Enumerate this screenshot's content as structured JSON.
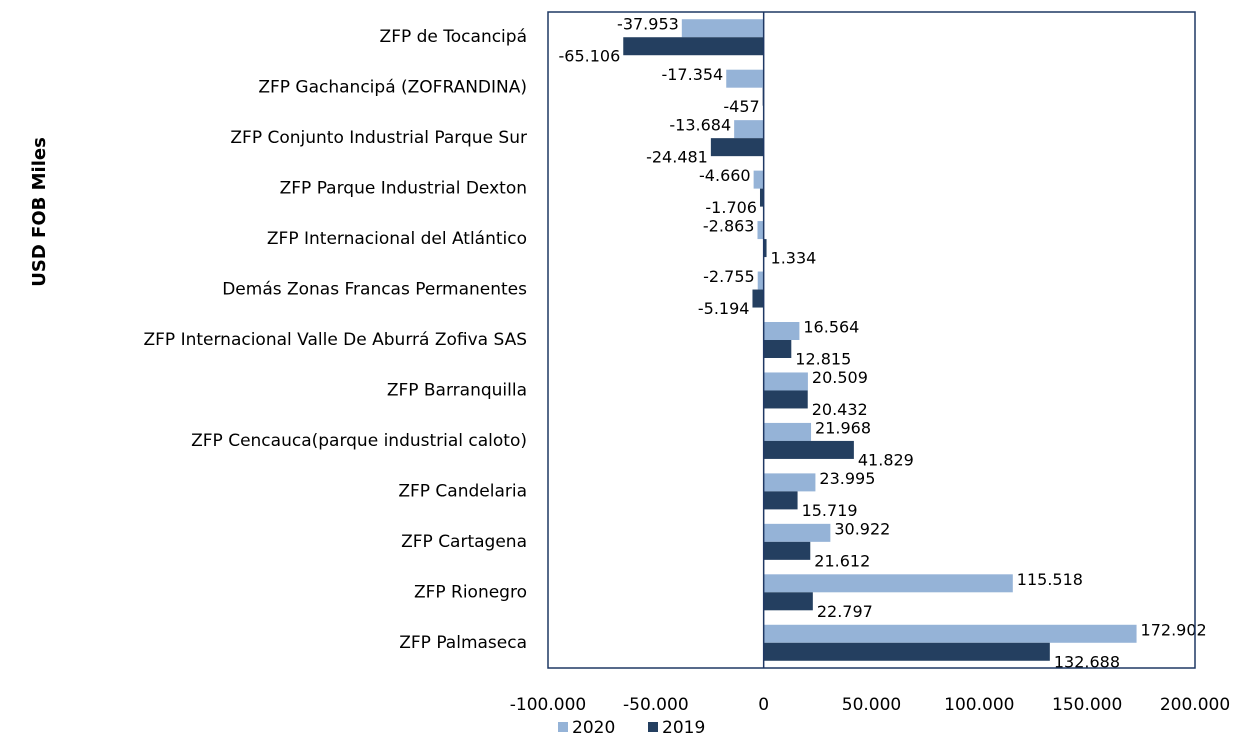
{
  "chart_data": {
    "type": "barh",
    "ylabel": "USD FOB Miles",
    "categories": [
      "ZFP de Tocancipá",
      "ZFP Gachancipá (ZOFRANDINA)",
      "ZFP Conjunto Industrial Parque Sur",
      "ZFP Parque Industrial Dexton",
      "ZFP Internacional del Atlántico",
      "Demás Zonas Francas Permanentes",
      "ZFP Internacional Valle De Aburrá Zofiva SAS",
      "ZFP Barranquilla",
      "ZFP Cencauca(parque industrial caloto)",
      "ZFP Candelaria",
      "ZFP Cartagena",
      "ZFP Rionegro",
      "ZFP Palmaseca"
    ],
    "series": [
      {
        "name": "2020",
        "color": "#95b3d7",
        "values": [
          -37953,
          -17354,
          -13684,
          -4660,
          -2863,
          -2755,
          16564,
          20509,
          21968,
          23995,
          30922,
          115518,
          172902
        ],
        "value_labels": [
          "-37.953",
          "-17.354",
          "-13.684",
          "-4.660",
          "-2.863",
          "-2.755",
          "16.564",
          "20.509",
          "21.968",
          "23.995",
          "30.922",
          "115.518",
          "172.902"
        ]
      },
      {
        "name": "2019",
        "color": "#243f60",
        "values": [
          -65106,
          -457,
          -24481,
          -1706,
          1334,
          -5194,
          12815,
          20432,
          41829,
          15719,
          21612,
          22797,
          132688
        ],
        "value_labels": [
          "-65.106",
          "-457",
          "-24.481",
          "-1.706",
          "1.334",
          "-5.194",
          "12.815",
          "20.432",
          "41.829",
          "15.719",
          "21.612",
          "22.797",
          "132.688"
        ]
      }
    ],
    "xlim": [
      -100000,
      200000
    ],
    "xticks": [
      {
        "value": -100000,
        "label": "-100.000"
      },
      {
        "value": -50000,
        "label": "-50.000"
      },
      0,
      {
        "value": 50000,
        "label": "50.000"
      },
      {
        "value": 100000,
        "label": "100.000"
      },
      {
        "value": 150000,
        "label": "150.000"
      },
      {
        "value": 200000,
        "label": "200.000"
      }
    ],
    "grid": false,
    "legend": "bottom"
  }
}
